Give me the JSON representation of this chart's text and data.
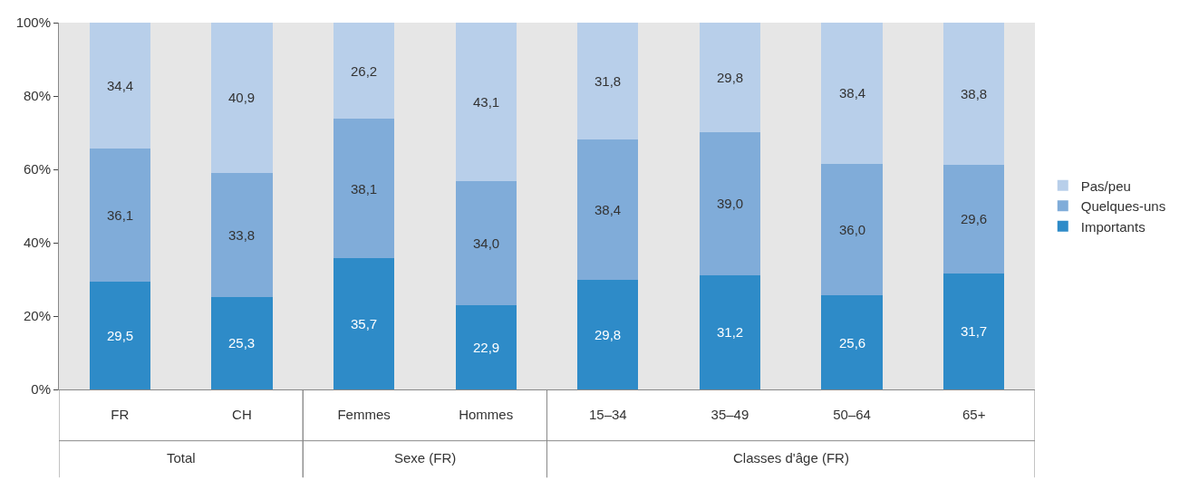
{
  "chart_data": {
    "type": "bar",
    "stacked": true,
    "categories": [
      "FR",
      "CH",
      "Femmes",
      "Hommes",
      "15–34",
      "35–49",
      "50–64",
      "65+"
    ],
    "series": [
      {
        "name": "Importants",
        "color": "#2e8bc8",
        "values": [
          29.5,
          25.3,
          35.7,
          22.9,
          29.8,
          31.2,
          25.6,
          31.7
        ],
        "value_labels": [
          "29,5",
          "25,3",
          "35,7",
          "22,9",
          "29,8",
          "31,2",
          "25,6",
          "31,7"
        ]
      },
      {
        "name": "Quelques-uns",
        "color": "#80acd9",
        "values": [
          36.1,
          33.8,
          38.1,
          34.0,
          38.4,
          39.0,
          36.0,
          29.6
        ],
        "value_labels": [
          "36,1",
          "33,8",
          "38,1",
          "34,0",
          "38,4",
          "39,0",
          "36,0",
          "29,6"
        ]
      },
      {
        "name": "Pas/peu",
        "color": "#b8cfea",
        "values": [
          34.4,
          40.9,
          26.2,
          43.1,
          31.8,
          29.8,
          38.4,
          38.8
        ],
        "value_labels": [
          "34,4",
          "40,9",
          "26,2",
          "43,1",
          "31,8",
          "29,8",
          "38,4",
          "38,8"
        ]
      }
    ],
    "ylim": [
      0,
      100
    ],
    "yticks": [
      {
        "value": 0,
        "label": "0%"
      },
      {
        "value": 20,
        "label": "20%"
      },
      {
        "value": 40,
        "label": "40%"
      },
      {
        "value": 60,
        "label": "60%"
      },
      {
        "value": 80,
        "label": "80%"
      },
      {
        "value": 100,
        "label": "100%"
      }
    ],
    "annotations": [
      "Total",
      "Sexe (FR)",
      "Classes d'âge (FR)"
    ],
    "grid": false,
    "legend": "right"
  }
}
